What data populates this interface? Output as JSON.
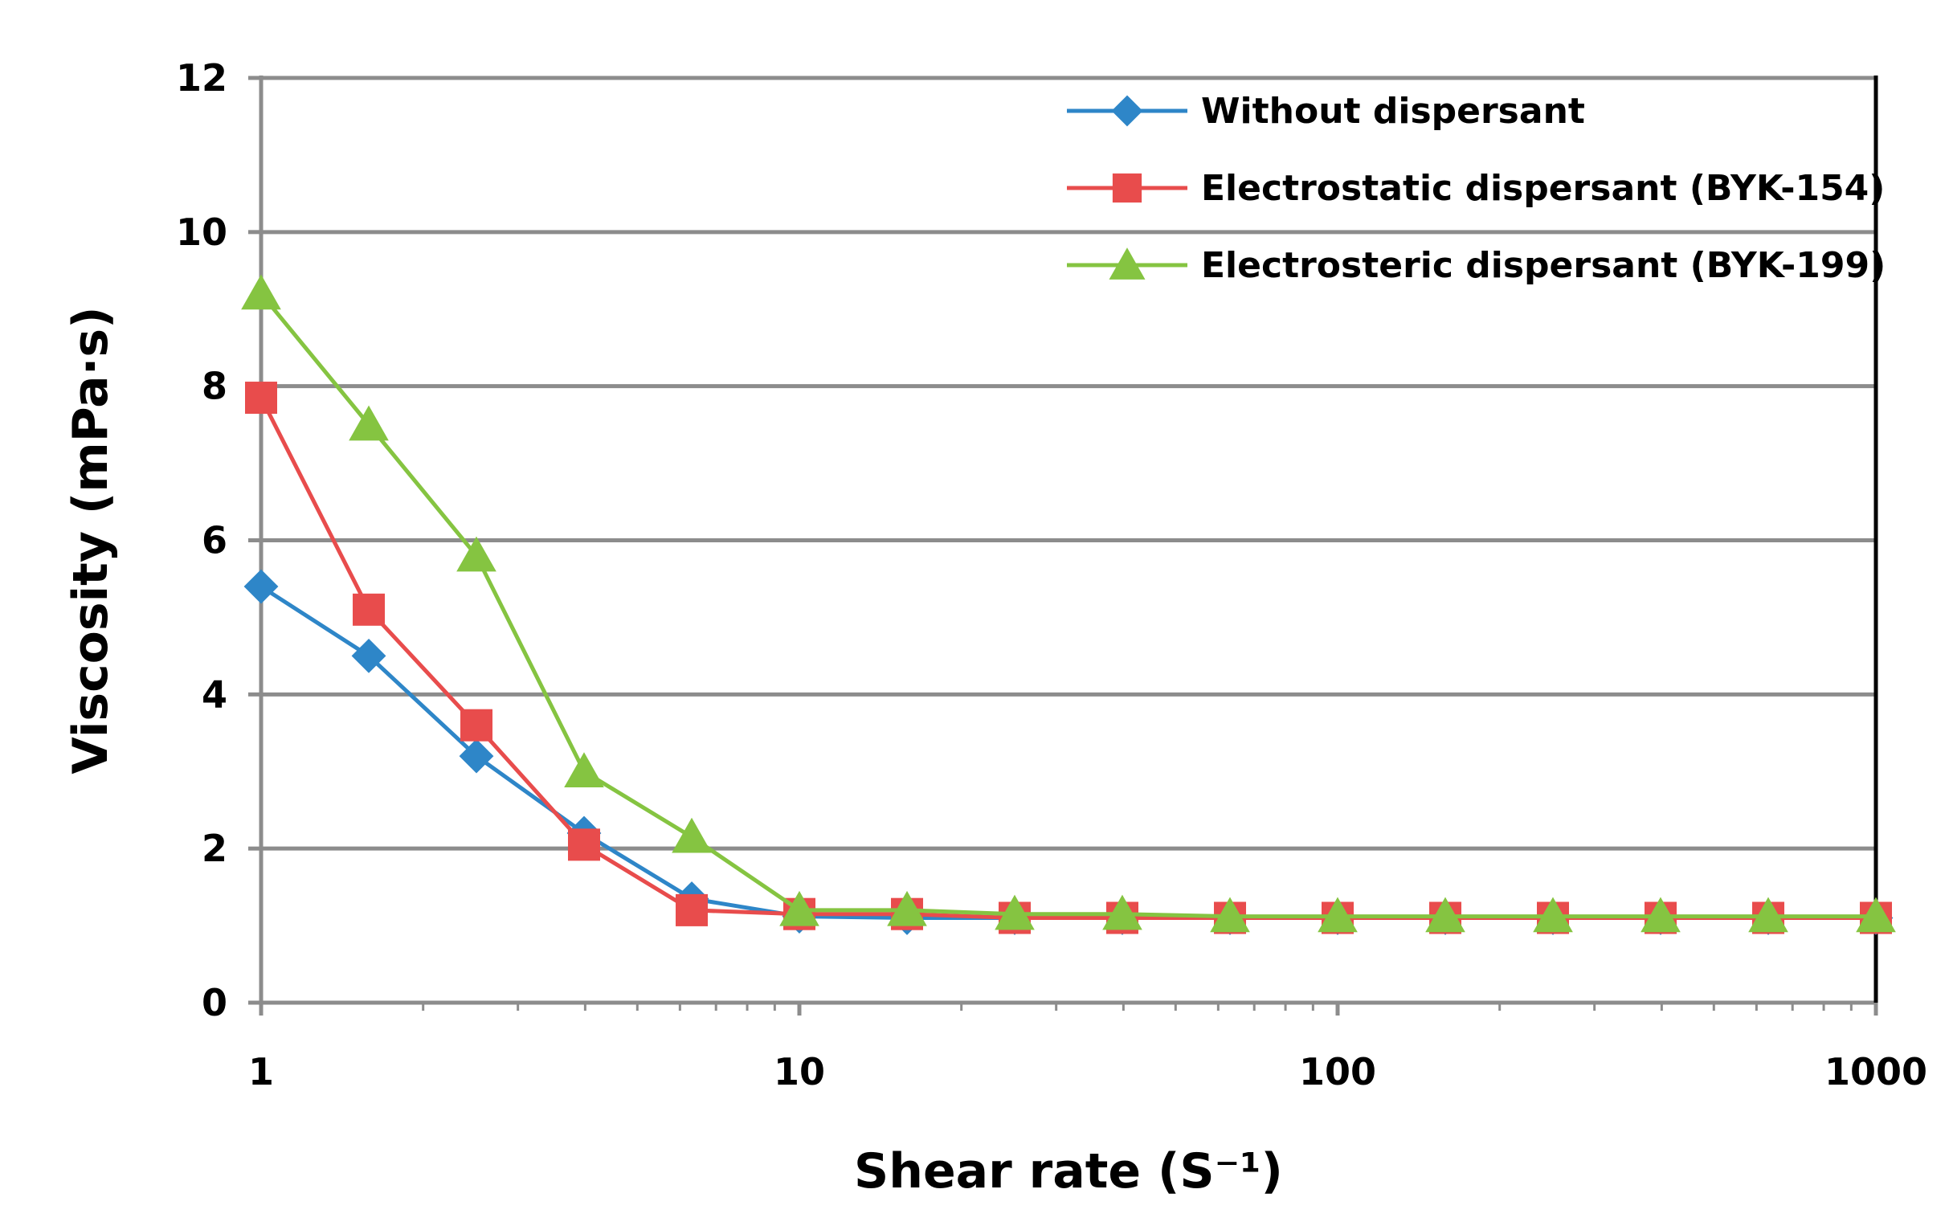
{
  "chart_data": {
    "type": "line",
    "title": "",
    "xlabel": "Shear rate (S⁻¹)",
    "ylabel": "Viscosity (mPa·s)",
    "xscale": "log",
    "xlim": [
      1,
      1000
    ],
    "ylim": [
      0,
      12
    ],
    "yticks": [
      0,
      2,
      4,
      6,
      8,
      10,
      12
    ],
    "ytick_labels": [
      "0",
      "2",
      "4",
      "6",
      "8",
      "10",
      "12"
    ],
    "xticks": [
      1,
      10,
      100,
      1000
    ],
    "xtick_labels": [
      "1",
      "10",
      "100",
      "1000"
    ],
    "grid": "horizontal",
    "legend_position": "top-right",
    "x": [
      1,
      1.585,
      2.512,
      3.981,
      6.31,
      10,
      15.85,
      25.12,
      39.81,
      63.1,
      100,
      158.5,
      251.2,
      398.1,
      631,
      1000
    ],
    "series": [
      {
        "name": "Without dispersant",
        "color": "#2e86c8",
        "marker": "diamond",
        "values": [
          5.4,
          4.5,
          3.2,
          2.2,
          1.35,
          1.12,
          1.1,
          1.1,
          1.1,
          1.1,
          1.1,
          1.1,
          1.1,
          1.1,
          1.1,
          1.1
        ]
      },
      {
        "name": "Electrostatic dispersant (BYK-154)",
        "color": "#e84c4c",
        "marker": "square",
        "values": [
          7.85,
          5.1,
          3.6,
          2.05,
          1.2,
          1.15,
          1.15,
          1.1,
          1.1,
          1.1,
          1.1,
          1.1,
          1.1,
          1.1,
          1.1,
          1.1
        ]
      },
      {
        "name": "Electrosteric dispersant (BYK-199)",
        "color": "#85c441",
        "marker": "triangle",
        "values": [
          9.2,
          7.5,
          5.8,
          3.0,
          2.15,
          1.2,
          1.2,
          1.15,
          1.15,
          1.12,
          1.12,
          1.12,
          1.12,
          1.12,
          1.12,
          1.12
        ]
      }
    ]
  }
}
